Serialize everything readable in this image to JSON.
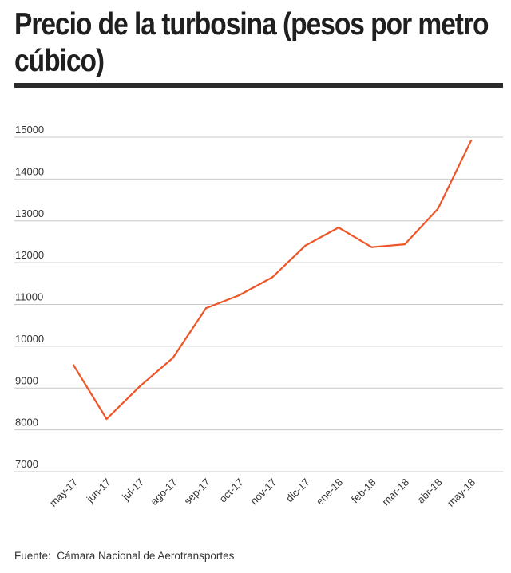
{
  "chart_data": {
    "type": "line",
    "title": "Precio de la turbosina (pesos por metro cúbico)",
    "source_label": "Fuente:",
    "source_text": "Cámara Nacional de Aerotransportes",
    "categories": [
      "may-17",
      "jun-17",
      "jul-17",
      "ago-17",
      "sep-17",
      "oct-17",
      "nov-17",
      "dic-17",
      "ene-18",
      "feb-18",
      "mar-18",
      "abr-18",
      "may-18"
    ],
    "series": [
      {
        "values": [
          9550,
          8260,
          9040,
          9720,
          10910,
          11220,
          11650,
          12410,
          12840,
          12370,
          12440,
          13290,
          14920
        ],
        "color": "#ee5527"
      }
    ],
    "ylim": [
      7000,
      15000
    ],
    "yticks": [
      15000,
      14000,
      13000,
      12000,
      11000,
      10000,
      9000,
      8000,
      7000
    ],
    "ytick_labels": [
      "15000",
      "14000",
      "13000",
      "12000",
      "11000",
      "10000",
      "9000",
      "8000",
      "7000"
    ],
    "grid": true,
    "legend": "none"
  }
}
